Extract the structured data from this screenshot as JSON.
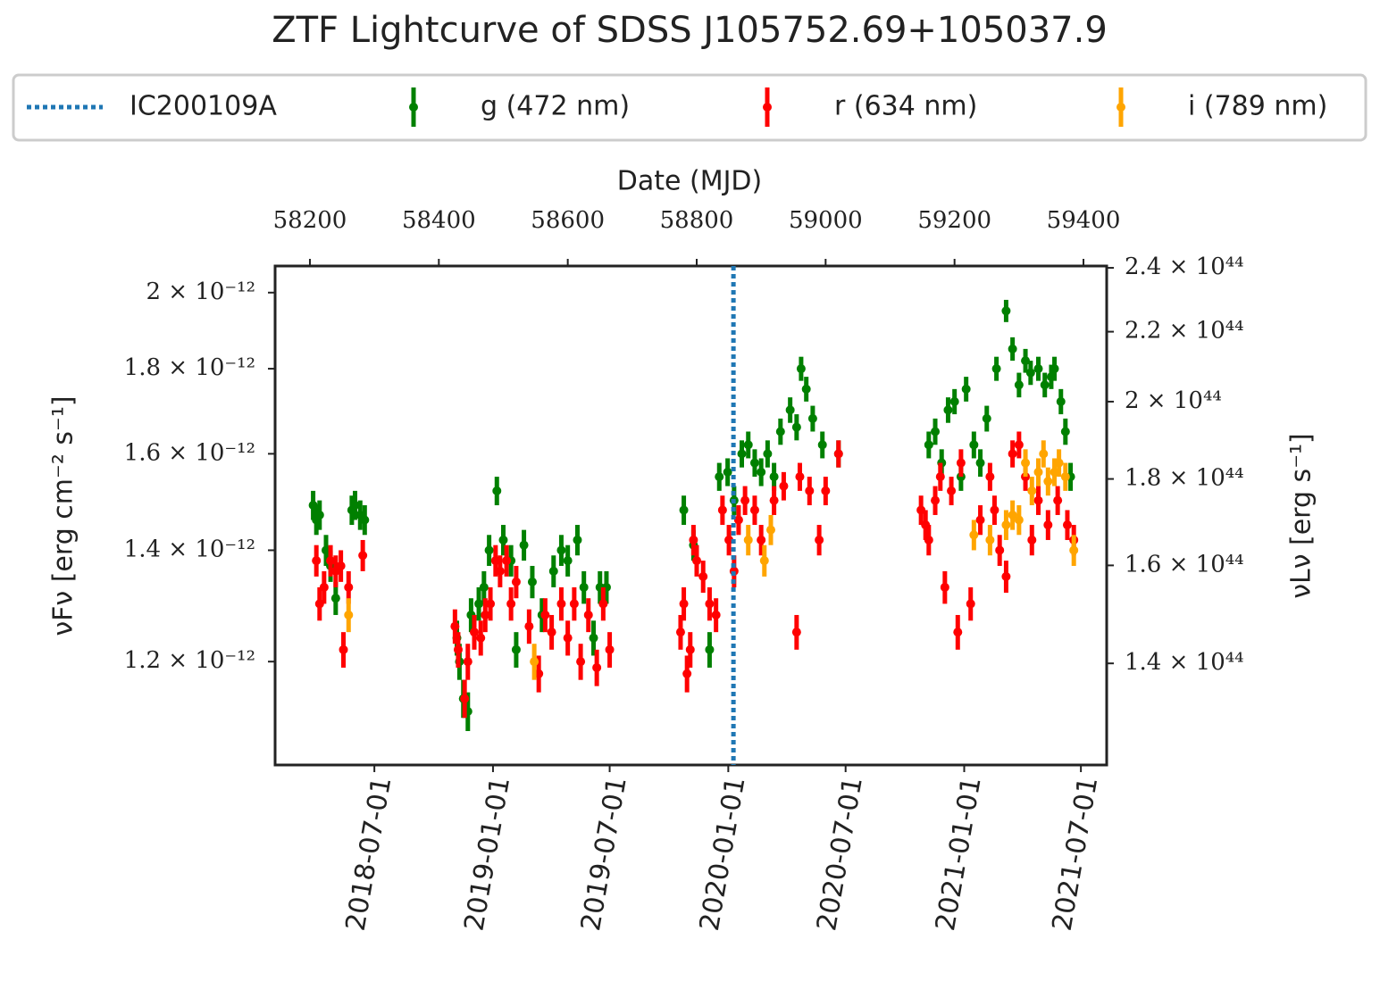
{
  "chart_data": {
    "type": "errorbar",
    "title": "ZTF Lightcurve of SDSS J105752.69+105037.9",
    "x_label_top": "Date (MJD)",
    "y_label": "νFν [erg cm⁻² s⁻¹]",
    "y2_label": "νLν [erg s⁻¹]",
    "yscale": "log",
    "y2scale": "log",
    "legend": "top",
    "xlim": [
      58146,
      59436
    ],
    "xticks": [
      58200,
      58400,
      58600,
      58800,
      59000,
      59200,
      59400
    ],
    "date_ticks": [
      {
        "value": 58300,
        "label": "2018-07-01"
      },
      {
        "value": 58484,
        "label": "2019-01-01"
      },
      {
        "value": 58665,
        "label": "2019-07-01"
      },
      {
        "value": 58849,
        "label": "2020-01-01"
      },
      {
        "value": 59031,
        "label": "2020-07-01"
      },
      {
        "value": 59215,
        "label": "2021-01-01"
      },
      {
        "value": 59396,
        "label": "2021-07-01"
      }
    ],
    "ylim": [
      1.04e-12,
      2.075e-12
    ],
    "yticks": [
      {
        "value": 1.2e-12,
        "label": "1.2 × 10⁻¹²"
      },
      {
        "value": 1.4e-12,
        "label": "1.4 × 10⁻¹²"
      },
      {
        "value": 1.6e-12,
        "label": "1.6 × 10⁻¹²"
      },
      {
        "value": 1.8e-12,
        "label": "1.8 × 10⁻¹²"
      },
      {
        "value": 2e-12,
        "label": "2 × 10⁻¹²"
      }
    ],
    "y2lim": [
      1.219e+44,
      2.406e+44
    ],
    "y2ticks": [
      {
        "value": 1.4e+44,
        "label": "1.4 × 10⁴⁴"
      },
      {
        "value": 1.6e+44,
        "label": "1.6 × 10⁴⁴"
      },
      {
        "value": 1.8e+44,
        "label": "1.8 × 10⁴⁴"
      },
      {
        "value": 2e+44,
        "label": "2 × 10⁴⁴"
      },
      {
        "value": 2.2e+44,
        "label": "2.2 × 10⁴⁴"
      },
      {
        "value": 2.4e+44,
        "label": "2.4 × 10⁴⁴"
      }
    ],
    "vlines": [
      {
        "x": 58857,
        "label": "IC200109A",
        "color": "#1f77b4"
      }
    ],
    "series": [
      {
        "name": "g (472 nm)",
        "color": "#008000",
        "x": [
          58205,
          58210,
          58215,
          58225,
          58232,
          58240,
          58265,
          58270,
          58278,
          58285,
          58428,
          58432,
          58438,
          58445,
          58450,
          58462,
          58470,
          58478,
          58490,
          58500,
          58512,
          58520,
          58532,
          58545,
          58560,
          58578,
          58590,
          58600,
          58615,
          58625,
          58640,
          58650,
          58660,
          58780,
          58795,
          58820,
          58835,
          58848,
          58858,
          58870,
          58880,
          58890,
          58900,
          58910,
          58920,
          58930,
          58945,
          58955,
          58962,
          58970,
          58980,
          58995,
          59020,
          59160,
          59170,
          59180,
          59190,
          59200,
          59210,
          59218,
          59230,
          59240,
          59250,
          59265,
          59280,
          59290,
          59300,
          59310,
          59318,
          59330,
          59340,
          59350,
          59355,
          59365,
          59372,
          59380
        ],
        "values": [
          1.49e-12,
          1.46e-12,
          1.47e-12,
          1.4e-12,
          1.37e-12,
          1.31e-12,
          1.48e-12,
          1.49e-12,
          1.47e-12,
          1.46e-12,
          1.24e-12,
          1.2e-12,
          1.14e-12,
          1.12e-12,
          1.28e-12,
          1.3e-12,
          1.33e-12,
          1.4e-12,
          1.52e-12,
          1.42e-12,
          1.38e-12,
          1.22e-12,
          1.41e-12,
          1.34e-12,
          1.28e-12,
          1.36e-12,
          1.4e-12,
          1.38e-12,
          1.42e-12,
          1.33e-12,
          1.24e-12,
          1.33e-12,
          1.33e-12,
          1.48e-12,
          1.41e-12,
          1.22e-12,
          1.55e-12,
          1.56e-12,
          1.5e-12,
          1.6e-12,
          1.62e-12,
          1.58e-12,
          1.56e-12,
          1.6e-12,
          1.55e-12,
          1.65e-12,
          1.7e-12,
          1.66e-12,
          1.8e-12,
          1.75e-12,
          1.68e-12,
          1.62e-12,
          1.6e-12,
          1.62e-12,
          1.65e-12,
          1.58e-12,
          1.7e-12,
          1.72e-12,
          1.55e-12,
          1.75e-12,
          1.62e-12,
          1.58e-12,
          1.68e-12,
          1.8e-12,
          1.95e-12,
          1.85e-12,
          1.76e-12,
          1.82e-12,
          1.79e-12,
          1.8e-12,
          1.76e-12,
          1.78e-12,
          1.8e-12,
          1.72e-12,
          1.65e-12,
          1.55e-12
        ],
        "errors": [
          3e-14,
          3e-14,
          3e-14,
          3e-14,
          3e-14,
          3e-14,
          3e-14,
          3e-14,
          3e-14,
          3e-14,
          3e-14,
          3e-14,
          3e-14,
          3e-14,
          3e-14,
          3e-14,
          3e-14,
          3e-14,
          3e-14,
          3e-14,
          3e-14,
          3e-14,
          3e-14,
          3e-14,
          3e-14,
          3e-14,
          3e-14,
          3e-14,
          3e-14,
          3e-14,
          3e-14,
          3e-14,
          3e-14,
          3e-14,
          3e-14,
          3e-14,
          3e-14,
          3e-14,
          3e-14,
          3e-14,
          3e-14,
          3e-14,
          3e-14,
          3e-14,
          3e-14,
          3e-14,
          3e-14,
          3e-14,
          3e-14,
          3e-14,
          3e-14,
          3e-14,
          3e-14,
          3e-14,
          3e-14,
          3e-14,
          3e-14,
          3e-14,
          3e-14,
          3e-14,
          3e-14,
          3e-14,
          3e-14,
          3e-14,
          3e-14,
          3e-14,
          3e-14,
          3e-14,
          3e-14,
          3e-14,
          3e-14,
          3e-14,
          3e-14,
          3e-14,
          3e-14,
          3e-14
        ]
      },
      {
        "name": "r (634 nm)",
        "color": "#ff0000",
        "x": [
          58210,
          58215,
          58222,
          58232,
          58240,
          58248,
          58252,
          58260,
          58282,
          58425,
          58430,
          58440,
          58445,
          58455,
          58465,
          58472,
          58480,
          58488,
          58495,
          58505,
          58512,
          58520,
          58540,
          58555,
          58565,
          58575,
          58590,
          58600,
          58610,
          58620,
          58632,
          58645,
          58655,
          58665,
          58775,
          58780,
          58785,
          58790,
          58795,
          58800,
          58810,
          58820,
          58830,
          58840,
          58850,
          58858,
          58865,
          58875,
          58890,
          58900,
          58920,
          58935,
          58955,
          58960,
          58975,
          58990,
          59000,
          59020,
          59148,
          59155,
          59160,
          59170,
          59178,
          59185,
          59195,
          59205,
          59210,
          59225,
          59240,
          59255,
          59262,
          59270,
          59280,
          59290,
          59300,
          59310,
          59320,
          59330,
          59345,
          59360,
          59375,
          59385
        ],
        "values": [
          1.38e-12,
          1.3e-12,
          1.33e-12,
          1.38e-12,
          1.36e-12,
          1.37e-12,
          1.22e-12,
          1.33e-12,
          1.39e-12,
          1.26e-12,
          1.22e-12,
          1.14e-12,
          1.2e-12,
          1.25e-12,
          1.24e-12,
          1.28e-12,
          1.3e-12,
          1.38e-12,
          1.36e-12,
          1.38e-12,
          1.3e-12,
          1.34e-12,
          1.26e-12,
          1.18e-12,
          1.28e-12,
          1.25e-12,
          1.3e-12,
          1.24e-12,
          1.3e-12,
          1.2e-12,
          1.28e-12,
          1.19e-12,
          1.3e-12,
          1.22e-12,
          1.25e-12,
          1.3e-12,
          1.18e-12,
          1.22e-12,
          1.42e-12,
          1.38e-12,
          1.35e-12,
          1.3e-12,
          1.28e-12,
          1.48e-12,
          1.42e-12,
          1.36e-12,
          1.46e-12,
          1.5e-12,
          1.48e-12,
          1.42e-12,
          1.5e-12,
          1.53e-12,
          1.25e-12,
          1.55e-12,
          1.52e-12,
          1.42e-12,
          1.52e-12,
          1.6e-12,
          1.48e-12,
          1.45e-12,
          1.42e-12,
          1.5e-12,
          1.55e-12,
          1.33e-12,
          1.52e-12,
          1.25e-12,
          1.58e-12,
          1.3e-12,
          1.46e-12,
          1.55e-12,
          1.48e-12,
          1.4e-12,
          1.35e-12,
          1.6e-12,
          1.62e-12,
          1.55e-12,
          1.42e-12,
          1.5e-12,
          1.45e-12,
          1.5e-12,
          1.45e-12,
          1.42e-12
        ],
        "errors": [
          3e-14,
          3e-14,
          3e-14,
          3e-14,
          3e-14,
          3e-14,
          3e-14,
          3e-14,
          3e-14,
          3e-14,
          3e-14,
          3e-14,
          3e-14,
          3e-14,
          3e-14,
          3e-14,
          3e-14,
          3e-14,
          3e-14,
          3e-14,
          3e-14,
          3e-14,
          3e-14,
          3e-14,
          3e-14,
          3e-14,
          3e-14,
          3e-14,
          3e-14,
          3e-14,
          3e-14,
          3e-14,
          3e-14,
          3e-14,
          3e-14,
          3e-14,
          3e-14,
          3e-14,
          3e-14,
          3e-14,
          3e-14,
          3e-14,
          3e-14,
          3e-14,
          3e-14,
          3e-14,
          3e-14,
          3e-14,
          3e-14,
          3e-14,
          3e-14,
          3e-14,
          3e-14,
          3e-14,
          3e-14,
          3e-14,
          3e-14,
          3e-14,
          3e-14,
          3e-14,
          3e-14,
          3e-14,
          3e-14,
          3e-14,
          3e-14,
          3e-14,
          3e-14,
          3e-14,
          3e-14,
          3e-14,
          3e-14,
          3e-14,
          3e-14,
          3e-14,
          3e-14,
          3e-14,
          3e-14,
          3e-14,
          3e-14,
          3e-14,
          3e-14,
          3e-14
        ]
      },
      {
        "name": "i (789 nm)",
        "color": "#ffa500",
        "x": [
          58260,
          58548,
          58880,
          58905,
          58915,
          59230,
          59255,
          59280,
          59290,
          59300,
          59310,
          59320,
          59330,
          59338,
          59345,
          59355,
          59362,
          59372,
          59385
        ],
        "values": [
          1.28e-12,
          1.2e-12,
          1.42e-12,
          1.38e-12,
          1.44e-12,
          1.43e-12,
          1.42e-12,
          1.45e-12,
          1.47e-12,
          1.46e-12,
          1.58e-12,
          1.52e-12,
          1.56e-12,
          1.6e-12,
          1.54e-12,
          1.56e-12,
          1.58e-12,
          1.55e-12,
          1.4e-12
        ],
        "errors": [
          3e-14,
          3e-14,
          3e-14,
          3e-14,
          3e-14,
          3e-14,
          3e-14,
          3e-14,
          3e-14,
          3e-14,
          3e-14,
          3e-14,
          3e-14,
          3e-14,
          3e-14,
          3e-14,
          3e-14,
          3e-14,
          3e-14
        ]
      }
    ]
  }
}
